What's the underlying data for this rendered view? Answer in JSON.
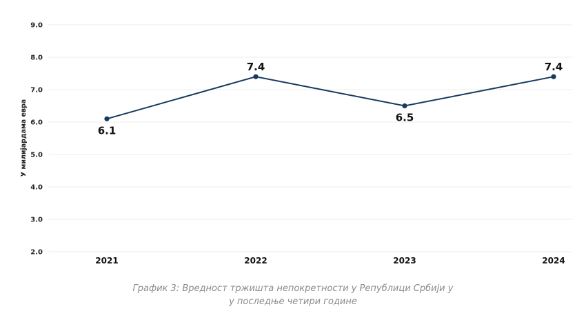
{
  "chart_data": {
    "type": "line",
    "categories": [
      "2021",
      "2022",
      "2023",
      "2024"
    ],
    "values": [
      6.1,
      7.4,
      6.5,
      7.4
    ],
    "data_labels": [
      "6.1",
      "7.4",
      "6.5",
      "7.4"
    ],
    "label_positions": [
      "below",
      "above",
      "below",
      "above"
    ],
    "ylabel": "У милијардама евра",
    "ylim": [
      2.0,
      9.0
    ],
    "yticks": [
      2.0,
      3.0,
      4.0,
      5.0,
      6.0,
      7.0,
      8.0,
      9.0
    ],
    "ytick_labels": [
      "2.0",
      "3.0",
      "4.0",
      "5.0",
      "6.0",
      "7.0",
      "8.0",
      "9.0"
    ],
    "grid": true,
    "line_color": "#163a5f",
    "grid_color": "#ececec"
  },
  "caption": {
    "line1": "График 3: Вредност тржишта непокретности у Републици Србији у",
    "line2": "у последње четири године"
  }
}
